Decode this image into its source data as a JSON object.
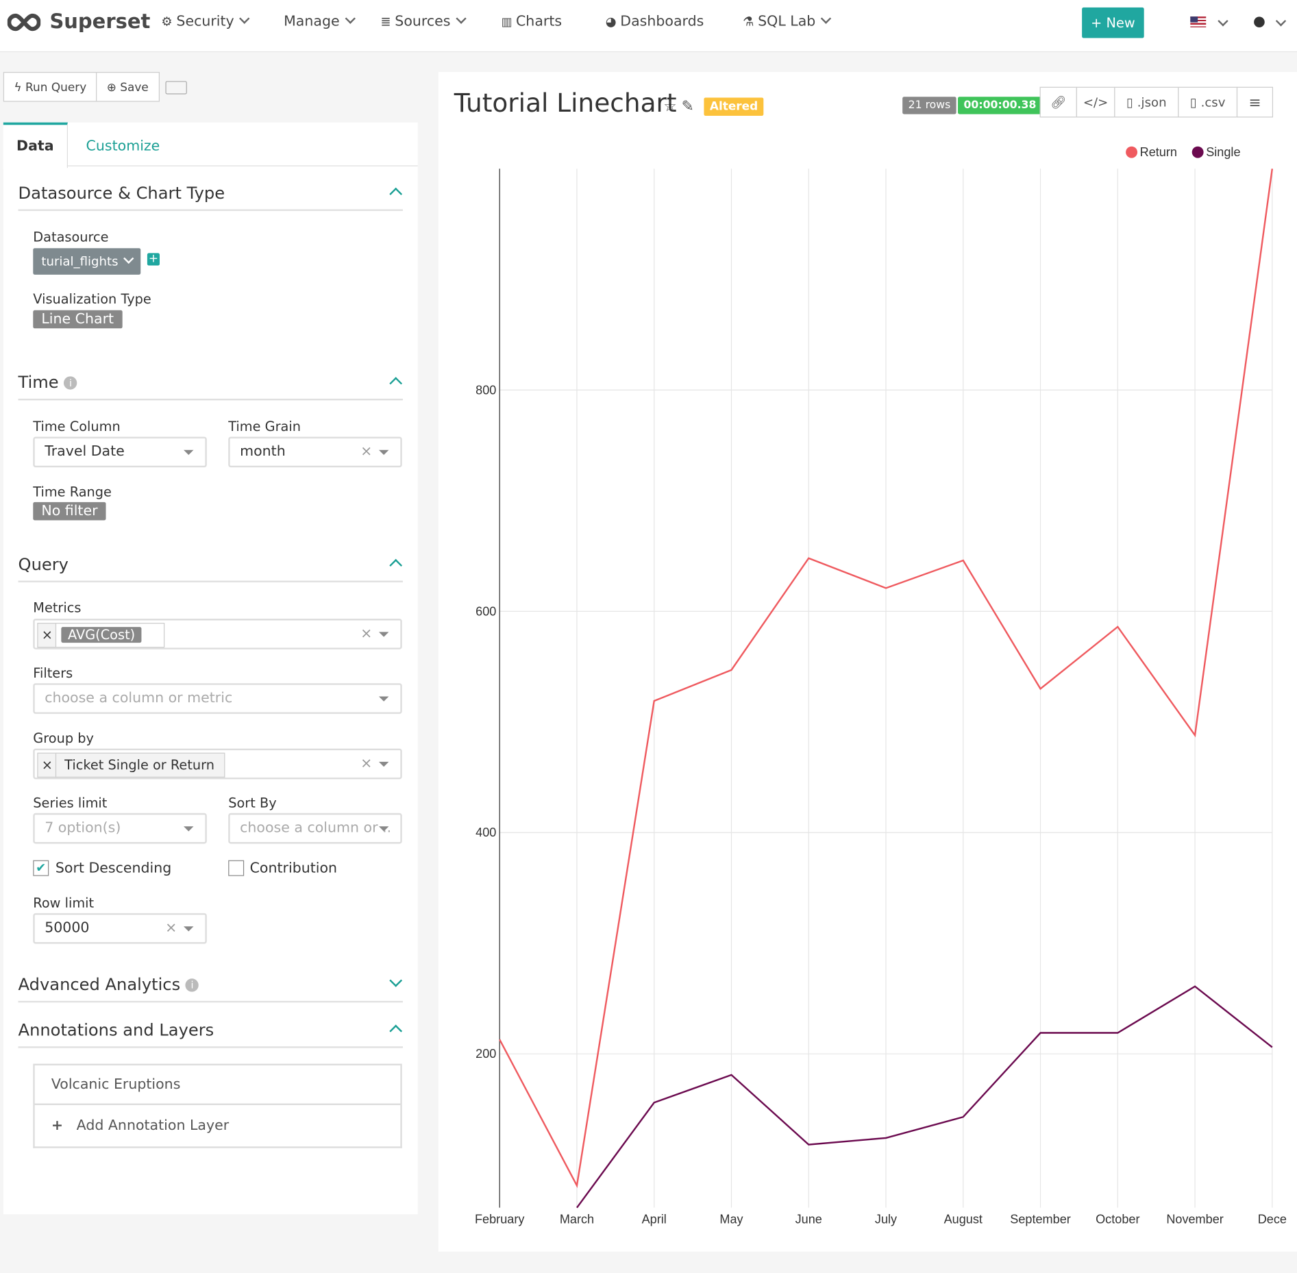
{
  "nav": {
    "brand": "Superset",
    "items": [
      "Security",
      "Manage",
      "Sources",
      "Charts",
      "Dashboards",
      "SQL Lab"
    ],
    "new_button": "New"
  },
  "toolbar": {
    "run_query": "Run Query",
    "save": "Save"
  },
  "tabs": [
    "Data",
    "Customize"
  ],
  "sections": {
    "datasource": {
      "title": "Datasource & Chart Type",
      "datasource_label": "Datasource",
      "datasource_value": "turial_flights",
      "viz_label": "Visualization Type",
      "viz_value": "Line Chart"
    },
    "time": {
      "title": "Time",
      "time_column_label": "Time Column",
      "time_column_value": "Travel Date",
      "time_grain_label": "Time Grain",
      "time_grain_value": "month",
      "time_range_label": "Time Range",
      "time_range_value": "No filter"
    },
    "query": {
      "title": "Query",
      "metrics_label": "Metrics",
      "metrics_value": "AVG(Cost)",
      "filters_label": "Filters",
      "filters_placeholder": "choose a column or metric",
      "groupby_label": "Group by",
      "groupby_value": "Ticket Single or Return",
      "series_limit_label": "Series limit",
      "series_limit_placeholder": "7 option(s)",
      "sort_by_label": "Sort By",
      "sort_by_placeholder": "choose a column or ..",
      "sort_descending": "Sort Descending",
      "contribution": "Contribution",
      "row_limit_label": "Row limit",
      "row_limit_value": "50000"
    },
    "advanced": {
      "title": "Advanced Analytics"
    },
    "annotations": {
      "title": "Annotations and Layers",
      "layer": "Volcanic Eruptions",
      "add_layer": "Add Annotation Layer"
    }
  },
  "chart_header": {
    "title": "Tutorial Linechart",
    "badge": "Altered",
    "rows": "21 rows",
    "duration": "00:00:00.38",
    "json": ".json",
    "csv": ".csv"
  },
  "chart_data": {
    "type": "line",
    "categories": [
      "February",
      "March",
      "April",
      "May",
      "June",
      "July",
      "August",
      "September",
      "October",
      "November",
      "Dece"
    ],
    "series": [
      {
        "name": "Return",
        "color": "#ef5a5f",
        "values": [
          213,
          81,
          519,
          547,
          648,
          621,
          646,
          530,
          586,
          488,
          1000
        ]
      },
      {
        "name": "Single",
        "color": "#6b0a4f",
        "values": [
          null,
          61,
          156,
          181,
          118,
          124,
          143,
          219,
          219,
          261,
          206
        ]
      }
    ],
    "ylim": [
      61,
      1000
    ],
    "yticks": [
      200,
      400,
      600,
      800
    ],
    "grid": true,
    "legend": "top-right"
  }
}
